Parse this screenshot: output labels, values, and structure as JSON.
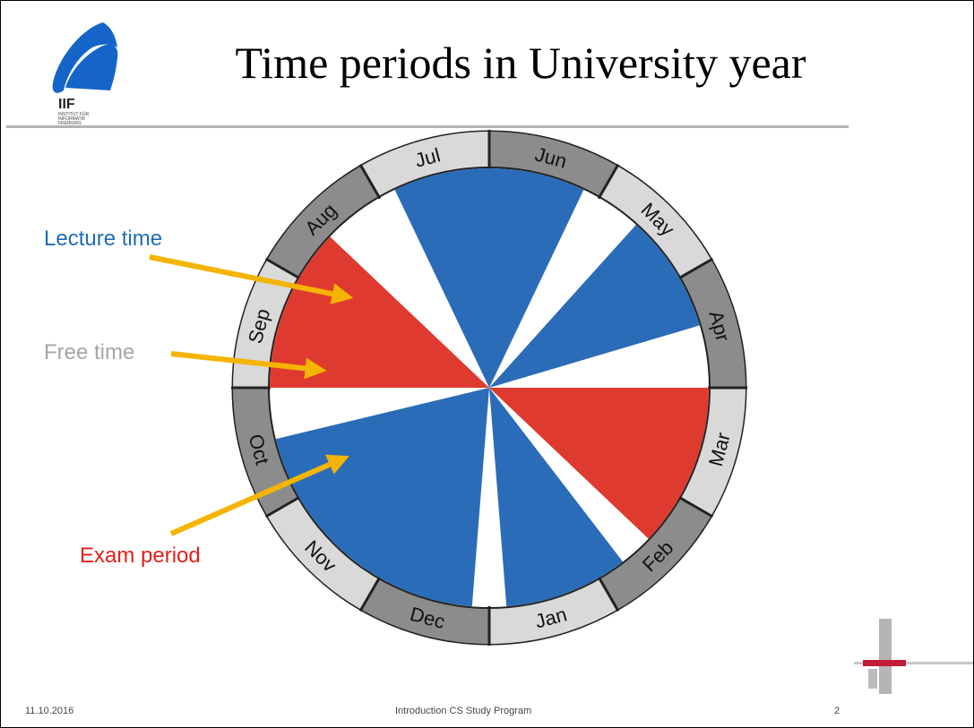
{
  "slide": {
    "title": "Time periods in University year",
    "logo_text": [
      "IIF",
      "INSTITUT FÜR",
      "INFORMATIK",
      "FREIBURG"
    ]
  },
  "legend": {
    "lecture": "Lecture time",
    "free": "Free time",
    "exam": "Exam period"
  },
  "colors": {
    "lecture": "#2b6cb8",
    "exam": "#df3a30",
    "free": "#ffffff",
    "arrow": "#f5b400",
    "ring_light": "#d9d9d9",
    "ring_dark": "#8c8c8c"
  },
  "months": [
    {
      "name": "Jan",
      "shade": "light"
    },
    {
      "name": "Feb",
      "shade": "dark"
    },
    {
      "name": "Mar",
      "shade": "light"
    },
    {
      "name": "Apr",
      "shade": "dark"
    },
    {
      "name": "May",
      "shade": "light"
    },
    {
      "name": "Jun",
      "shade": "dark"
    },
    {
      "name": "Jul",
      "shade": "light"
    },
    {
      "name": "Aug",
      "shade": "dark"
    },
    {
      "name": "Sep",
      "shade": "light"
    },
    {
      "name": "Oct",
      "shade": "dark"
    },
    {
      "name": "Nov",
      "shade": "light"
    },
    {
      "name": "Dec",
      "shade": "dark"
    }
  ],
  "periods": [
    {
      "type": "lecture",
      "start_month": 3.55,
      "end_month": 4.6
    },
    {
      "type": "lecture",
      "start_month": 5.15,
      "end_month": 6.85
    },
    {
      "type": "exam",
      "start_month": 7.55,
      "end_month": 9.0
    },
    {
      "type": "lecture",
      "start_month": 9.45,
      "end_month": 11.85
    },
    {
      "type": "lecture",
      "start_month": 0.15,
      "end_month": 1.25
    },
    {
      "type": "exam",
      "start_month": 1.55,
      "end_month": 3.0
    }
  ],
  "footer": {
    "date": "11.10.2016",
    "title": "Introduction CS Study Program",
    "page": "2"
  }
}
